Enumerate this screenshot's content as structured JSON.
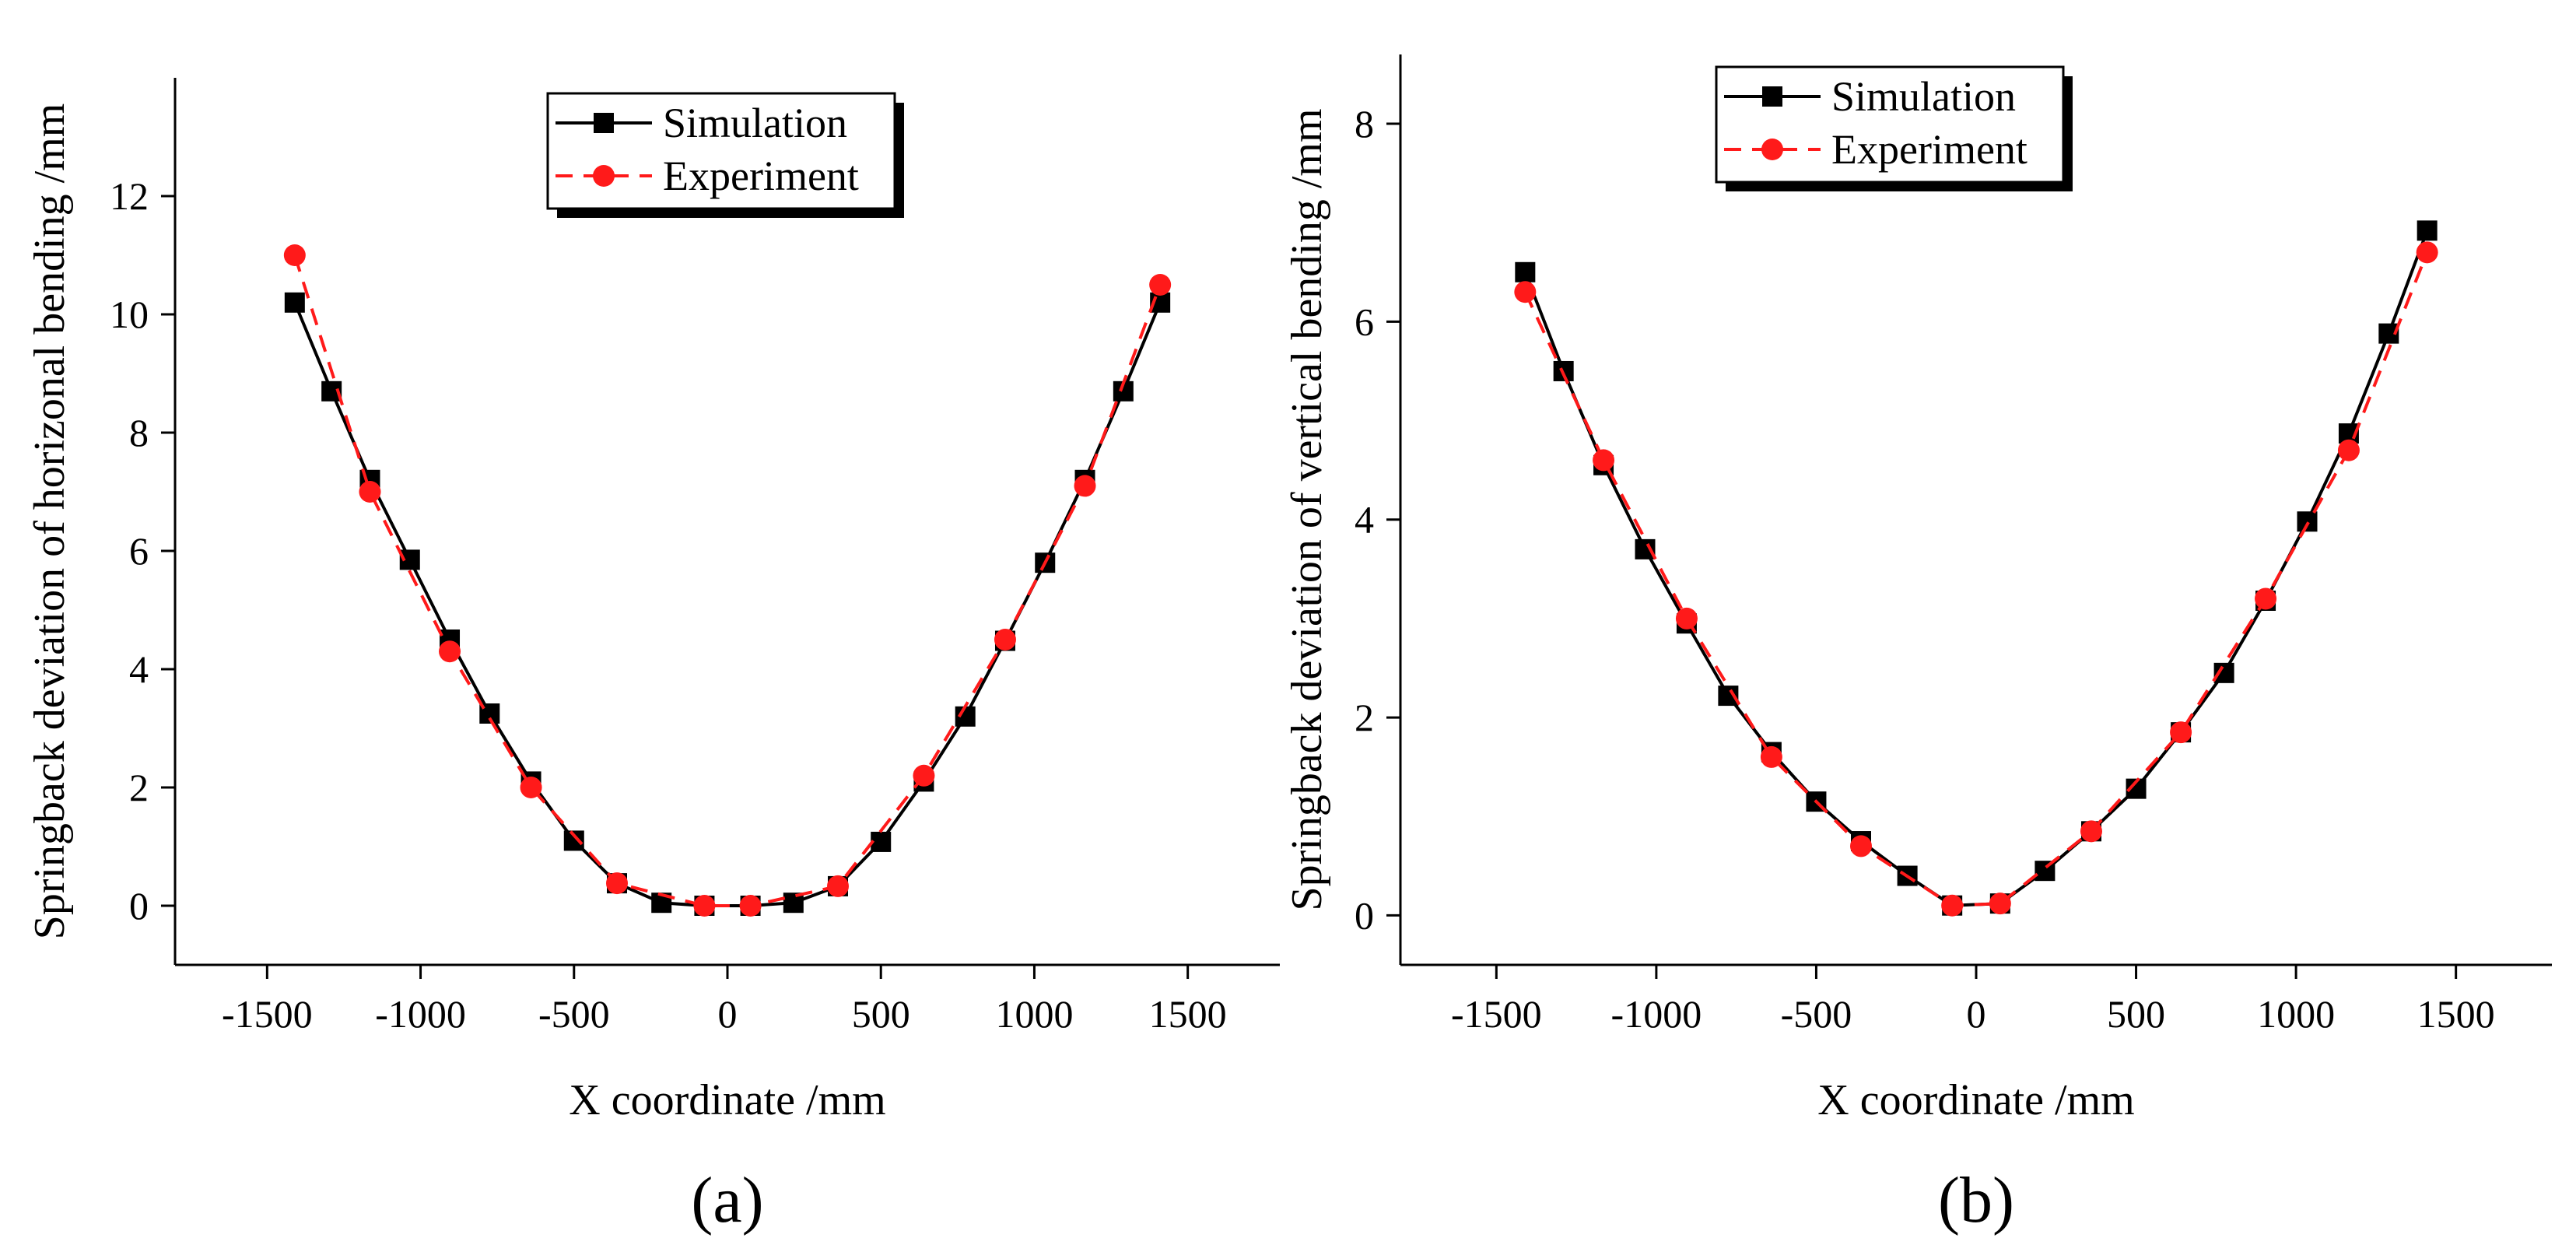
{
  "chart_data": [
    {
      "panel": "(a)",
      "type": "line",
      "xlabel": "X coordinate /mm",
      "ylabel": "Springback deviation of horizonal bending /mm",
      "xlim": [
        -1800,
        1800
      ],
      "ylim": [
        -1,
        14
      ],
      "xticks": [
        -1500,
        -1000,
        -500,
        0,
        500,
        1000,
        1500
      ],
      "yticks": [
        0,
        2,
        4,
        6,
        8,
        10,
        12
      ],
      "legend": "top-center",
      "series": [
        {
          "name": "Simulation",
          "color": "#000000",
          "marker": "square",
          "line": "solid",
          "x": [
            -1410,
            -1290,
            -1165,
            -1035,
            -905,
            -775,
            -640,
            -500,
            -360,
            -215,
            -75,
            75,
            215,
            360,
            500,
            640,
            775,
            905,
            1035,
            1165,
            1290,
            1410
          ],
          "y": [
            10.2,
            8.7,
            7.2,
            5.85,
            4.5,
            3.25,
            2.1,
            1.1,
            0.38,
            0.05,
            0.0,
            0.0,
            0.05,
            0.33,
            1.08,
            2.1,
            3.2,
            4.48,
            5.8,
            7.2,
            8.7,
            10.2
          ]
        },
        {
          "name": "Experiment",
          "color": "#ff1a1a",
          "marker": "circle",
          "line": "dashed",
          "x": [
            -1410,
            -1165,
            -905,
            -640,
            -360,
            -75,
            75,
            360,
            640,
            905,
            1165,
            1410
          ],
          "y": [
            11.0,
            7.0,
            4.3,
            2.0,
            0.38,
            0.0,
            0.0,
            0.33,
            2.2,
            4.5,
            7.1,
            10.5
          ]
        }
      ]
    },
    {
      "panel": "(b)",
      "type": "line",
      "xlabel": "X coordinate /mm",
      "ylabel": "Springback deviation of vertical bending /mm",
      "xlim": [
        -1800,
        1800
      ],
      "ylim": [
        -0.5,
        8.7
      ],
      "xticks": [
        -1500,
        -1000,
        -500,
        0,
        500,
        1000,
        1500
      ],
      "yticks": [
        0,
        2,
        4,
        6,
        8
      ],
      "legend": "top-center",
      "series": [
        {
          "name": "Simulation",
          "color": "#000000",
          "marker": "square",
          "line": "solid",
          "x": [
            -1410,
            -1290,
            -1165,
            -1035,
            -905,
            -775,
            -640,
            -500,
            -360,
            -215,
            -75,
            75,
            215,
            360,
            500,
            640,
            775,
            905,
            1035,
            1165,
            1290,
            1410
          ],
          "y": [
            6.5,
            5.5,
            4.55,
            3.7,
            2.95,
            2.22,
            1.65,
            1.15,
            0.75,
            0.4,
            0.1,
            0.12,
            0.45,
            0.85,
            1.28,
            1.85,
            2.45,
            3.18,
            3.98,
            4.87,
            5.88,
            6.92
          ]
        },
        {
          "name": "Experiment",
          "color": "#ff1a1a",
          "marker": "circle",
          "line": "dashed",
          "x": [
            -1410,
            -1165,
            -905,
            -640,
            -360,
            -75,
            75,
            360,
            640,
            905,
            1165,
            1410
          ],
          "y": [
            6.3,
            4.6,
            3.0,
            1.6,
            0.7,
            0.1,
            0.12,
            0.85,
            1.85,
            3.2,
            4.7,
            6.7
          ]
        }
      ]
    }
  ]
}
